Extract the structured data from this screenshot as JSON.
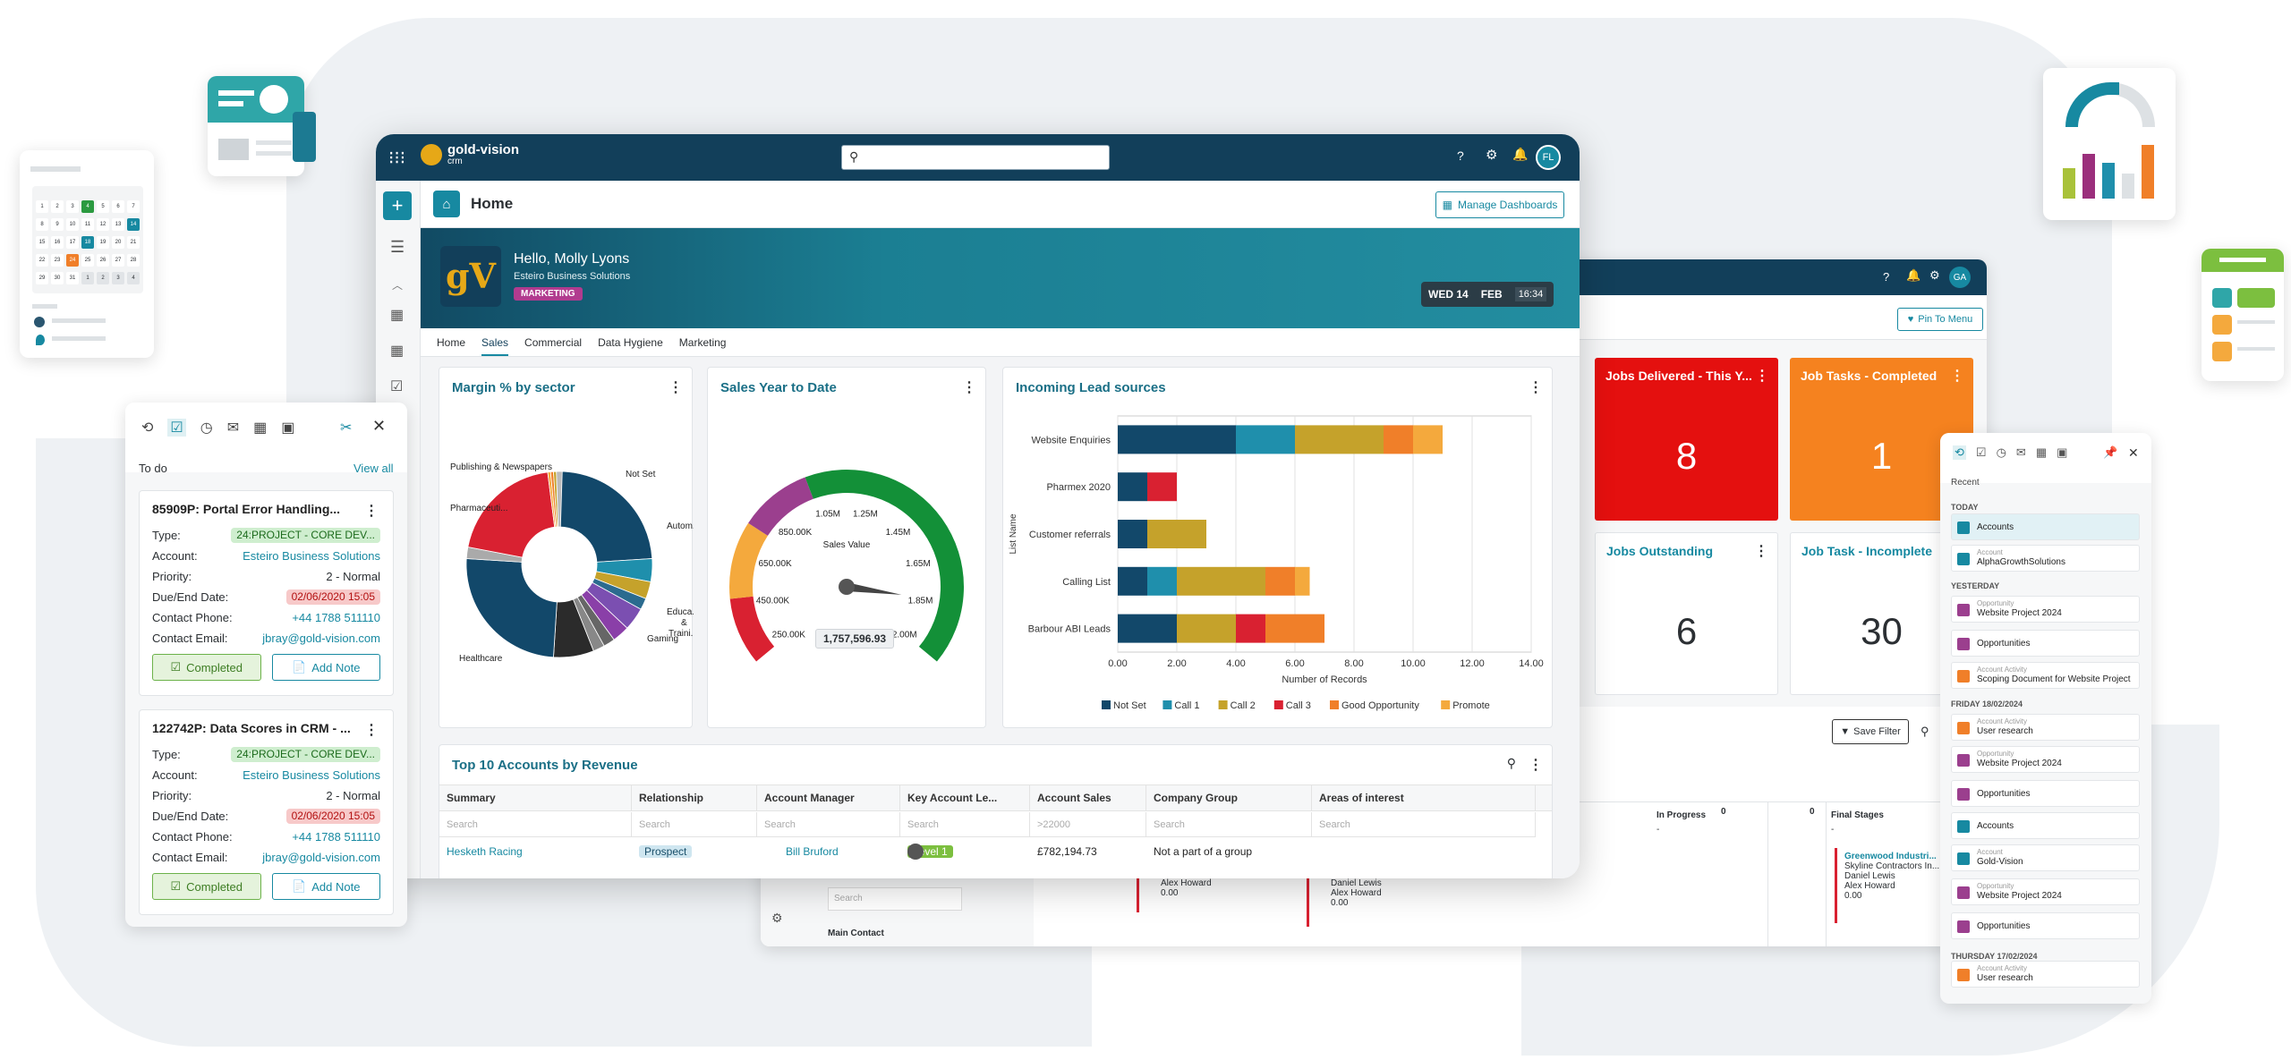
{
  "app": {
    "logo_text": "gold-vision",
    "logo_sub": "crm",
    "avatar": "FL",
    "second_avatar": "GA",
    "search_placeholder": ""
  },
  "page": {
    "title": "Home",
    "manage_label": "Manage Dashboards",
    "pin_label": "Pin To Menu"
  },
  "banner": {
    "greeting": "Hello, Molly Lyons",
    "company": "Esteiro Business Solutions",
    "role": "MARKETING",
    "day": "WED 14",
    "month": "FEB",
    "time": "16:34",
    "logo": "gV"
  },
  "tabs": [
    "Home",
    "Sales",
    "Commercial",
    "Data Hygiene",
    "Marketing"
  ],
  "panels": {
    "margin": "Margin % by sector",
    "sales_ytd": "Sales Year to Date",
    "lead": "Incoming Lead sources",
    "top10": "Top 10 Accounts by Revenue"
  },
  "pie_labels": {
    "publishing": "Publishing & Newspapers",
    "notset": "Not Set",
    "pharma": "Pharmaceuti...",
    "auto": "Autom...",
    "edu": "Educa...",
    "and": "&",
    "train": "Traini...",
    "gaming": "Gaming",
    "health": "Healthcare"
  },
  "gauge": {
    "labels": [
      "250.00K",
      "450.00K",
      "650.00K",
      "850.00K",
      "1.05M",
      "1.25M",
      "1.45M",
      "1.65M",
      "1.85M",
      "2.00M"
    ],
    "series_label": "Sales Value",
    "value": "1,757,596.93",
    "max": 2000000,
    "current": 1757596.93
  },
  "chart_data": {
    "type": "bar",
    "orientation": "horizontal-stacked",
    "title": "Incoming Lead sources",
    "ylabel": "List Name",
    "xlabel": "Number of Records",
    "categories": [
      "Website Enquiries",
      "Pharmex 2020",
      "Customer referrals",
      "Calling List",
      "Barbour ABI Leads"
    ],
    "x_ticks": [
      "0.00",
      "2.00",
      "4.00",
      "6.00",
      "8.00",
      "10.00",
      "12.00",
      "14.00"
    ],
    "xlim": [
      0,
      14
    ],
    "series": [
      {
        "name": "Not Set",
        "color": "#12486a",
        "values": [
          4,
          1,
          1,
          1,
          2
        ]
      },
      {
        "name": "Call 1",
        "color": "#1f8fac",
        "values": [
          2,
          0,
          0,
          1,
          0
        ]
      },
      {
        "name": "Call 2",
        "color": "#c5a22b",
        "values": [
          3,
          0,
          2,
          3,
          2
        ]
      },
      {
        "name": "Call 3",
        "color": "#d92131",
        "values": [
          0,
          1,
          0,
          0,
          1
        ]
      },
      {
        "name": "Good Opportunity",
        "color": "#f07f29",
        "values": [
          1,
          0,
          0,
          1,
          2
        ]
      },
      {
        "name": "Promote",
        "color": "#f4a93d",
        "values": [
          1,
          0,
          0,
          0.5,
          0
        ]
      }
    ]
  },
  "table": {
    "columns": [
      "Summary",
      "Relationship",
      "Account Manager",
      "Key Account Le...",
      "Account Sales",
      "Company Group",
      "Areas of interest"
    ],
    "search": [
      "Search",
      "Search",
      "Search",
      "Search",
      ">22000",
      "Search",
      "Search"
    ],
    "row": {
      "summary": "Hesketh Racing",
      "relationship": "Prospect",
      "manager": "Bill Bruford",
      "level": "Level 1",
      "sales": "£782,194.73",
      "group": "Not a part of a group"
    }
  },
  "tiles": [
    {
      "title": "Jobs Delivered - This Y...",
      "value": "8"
    },
    {
      "title": "Job Tasks - Completed",
      "value": "1"
    },
    {
      "title": "Jobs Outstanding",
      "value": "6"
    },
    {
      "title": "Job Task - Incomplete",
      "value": "30"
    }
  ],
  "kanban": {
    "save_filter": "Save Filter",
    "in_progress": "In Progress",
    "final_stages": "Final Stages",
    "count0": "0",
    "count1": "0",
    "dash": "-",
    "final_company": "Greenwood Industri...",
    "final_c2": "Skyline Contractors In...",
    "final_p1": "Daniel Lewis",
    "final_p2": "Alex Howard",
    "final_v": "0.00",
    "col1_p": "Alex Howard",
    "col1_v": "0.00",
    "col2_p1": "Daniel Lewis",
    "col2_p2": "Alex Howard",
    "col2_v": "0.00",
    "search": "Search",
    "main_contact": "Main Contact"
  },
  "todo": {
    "header": "To do",
    "view_all": "View all",
    "cards": [
      {
        "title": "85909P: Portal Error Handling...",
        "type": "24:PROJECT - CORE DEV...",
        "account": "Esteiro Business Solutions",
        "priority": "2 - Normal",
        "due": "02/06/2020 15:05",
        "phone": "+44 1788 511110",
        "email": "jbray@gold-vision.com"
      },
      {
        "title": "122742P: Data Scores in CRM - ...",
        "type": "24:PROJECT - CORE DEV...",
        "account": "Esteiro Business Solutions",
        "priority": "2 - Normal",
        "due": "02/06/2020 15:05",
        "phone": "+44 1788 511110",
        "email": "jbray@gold-vision.com"
      }
    ],
    "labels": {
      "type": "Type:",
      "account": "Account:",
      "priority": "Priority:",
      "due": "Due/End Date:",
      "phone": "Contact Phone:",
      "email": "Contact Email:"
    },
    "completed": "Completed",
    "add_note": "Add Note"
  },
  "recent": {
    "title": "Recent",
    "today": "TODAY",
    "yesterday": "YESTERDAY",
    "fri": "FRIDAY 18/02/2024",
    "thu": "THURSDAY 17/02/2024",
    "items": [
      {
        "sub": "",
        "title": "Accounts",
        "color": "#1789a1"
      },
      {
        "sub": "Account",
        "title": "AlphaGrowthSolutions",
        "color": "#1789a1"
      },
      {
        "sub": "Opportunity",
        "title": "Website Project 2024",
        "color": "#9b3f8e"
      },
      {
        "sub": "",
        "title": "Opportunities",
        "color": "#9b3f8e"
      },
      {
        "sub": "Account Activity",
        "title": "Scoping Document for Website Project",
        "color": "#f07f29"
      },
      {
        "sub": "Account Activity",
        "title": "User research",
        "color": "#f07f29"
      },
      {
        "sub": "Opportunity",
        "title": "Website Project 2024",
        "color": "#9b3f8e"
      },
      {
        "sub": "",
        "title": "Opportunities",
        "color": "#9b3f8e"
      },
      {
        "sub": "",
        "title": "Accounts",
        "color": "#1789a1"
      },
      {
        "sub": "Account",
        "title": "Gold-Vision",
        "color": "#1789a1"
      },
      {
        "sub": "Opportunity",
        "title": "Website Project 2024",
        "color": "#9b3f8e"
      },
      {
        "sub": "",
        "title": "Opportunities",
        "color": "#9b3f8e"
      },
      {
        "sub": "Account Activity",
        "title": "User research",
        "color": "#f07f29"
      }
    ]
  },
  "calendar": {
    "days": [
      "1",
      "2",
      "3",
      "4",
      "5",
      "6",
      "7",
      "8",
      "9",
      "10",
      "11",
      "12",
      "13",
      "14",
      "15",
      "16",
      "17",
      "18",
      "19",
      "20",
      "21",
      "22",
      "23",
      "24",
      "25",
      "26",
      "27",
      "28",
      "29",
      "30",
      "31",
      "1",
      "2",
      "3",
      "4"
    ]
  }
}
